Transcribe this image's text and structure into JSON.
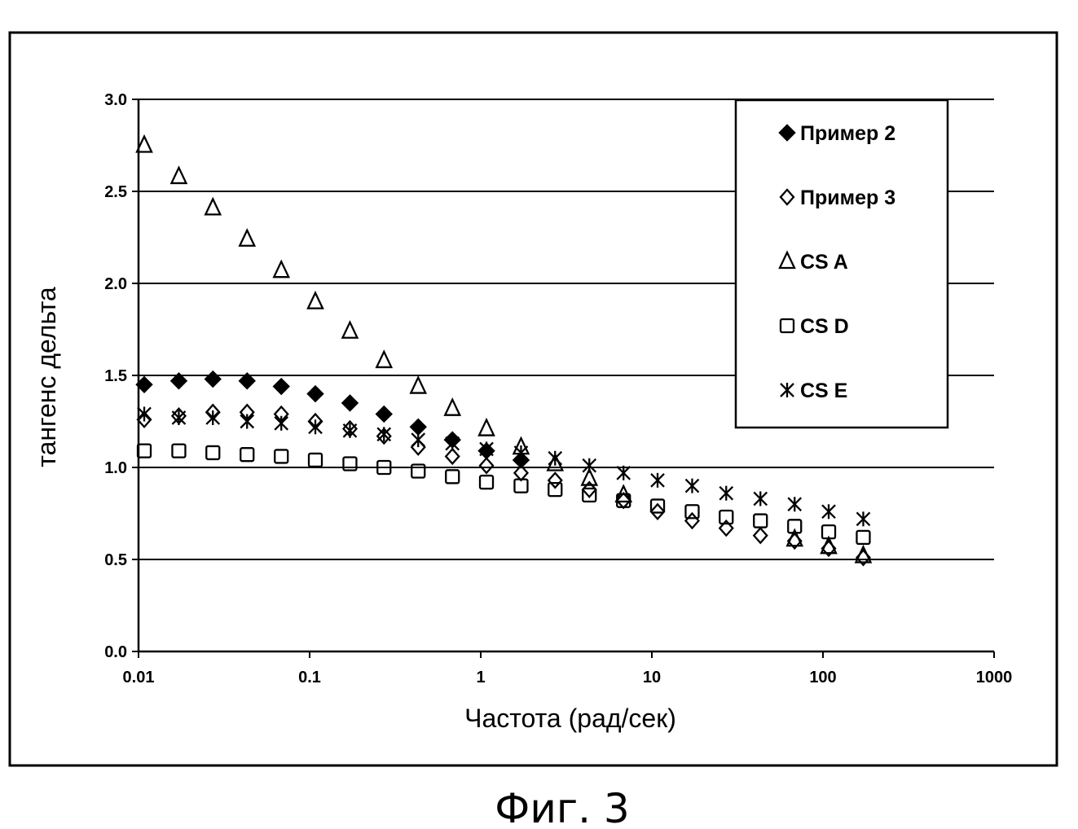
{
  "chart_data": {
    "type": "scatter",
    "title": "",
    "xlabel": "Частота (рад/сек)",
    "ylabel": "тангенс дельта",
    "x_scale": "log",
    "xlim": [
      0.01,
      1000
    ],
    "ylim": [
      0.0,
      3.0
    ],
    "x_ticks": [
      "0.01",
      "0.1",
      "1",
      "10",
      "100",
      "1000"
    ],
    "y_ticks": [
      "0.0",
      "0.5",
      "1.0",
      "1.5",
      "2.0",
      "2.5",
      "3.0"
    ],
    "grid": "horizontal",
    "legend_position": "top-right",
    "x": [
      0.0108,
      0.0172,
      0.0272,
      0.0431,
      0.0683,
      0.108,
      0.172,
      0.272,
      0.431,
      0.683,
      1.08,
      1.72,
      2.72,
      4.31,
      6.83,
      10.8,
      17.2,
      27.2,
      43.1,
      68.3,
      108,
      172
    ],
    "series": [
      {
        "name": "Пример 2",
        "marker": "filled-diamond",
        "values": [
          1.45,
          1.47,
          1.48,
          1.47,
          1.44,
          1.4,
          1.35,
          1.29,
          1.22,
          1.15,
          1.09,
          1.04,
          null,
          null,
          null,
          null,
          null,
          null,
          null,
          null,
          null,
          null
        ]
      },
      {
        "name": "Пример 3",
        "marker": "open-diamond",
        "values": [
          1.26,
          1.28,
          1.3,
          1.3,
          1.29,
          1.25,
          1.21,
          1.17,
          1.11,
          1.06,
          1.01,
          0.97,
          0.93,
          0.88,
          0.82,
          0.76,
          0.71,
          0.67,
          0.63,
          0.6,
          0.56,
          0.51
        ]
      },
      {
        "name": "CS A",
        "marker": "open-triangle",
        "values": [
          2.75,
          2.58,
          2.41,
          2.24,
          2.07,
          1.9,
          1.74,
          1.58,
          1.44,
          1.32,
          1.21,
          1.11,
          1.02,
          0.94,
          0.85,
          null,
          null,
          null,
          null,
          0.61,
          0.57,
          0.52
        ]
      },
      {
        "name": "CS D",
        "marker": "open-square",
        "values": [
          1.09,
          1.09,
          1.08,
          1.07,
          1.06,
          1.04,
          1.02,
          1.0,
          0.98,
          0.95,
          0.92,
          0.9,
          0.88,
          0.85,
          0.82,
          0.79,
          0.76,
          0.73,
          0.71,
          0.68,
          0.65,
          0.62
        ]
      },
      {
        "name": "CS E",
        "marker": "asterisk",
        "values": [
          1.29,
          1.27,
          1.27,
          1.25,
          1.24,
          1.22,
          1.2,
          1.18,
          1.15,
          1.13,
          1.1,
          1.08,
          1.05,
          1.01,
          0.97,
          0.93,
          0.9,
          0.86,
          0.83,
          0.8,
          0.76,
          0.72
        ]
      }
    ]
  },
  "caption": "Фиг. 3"
}
